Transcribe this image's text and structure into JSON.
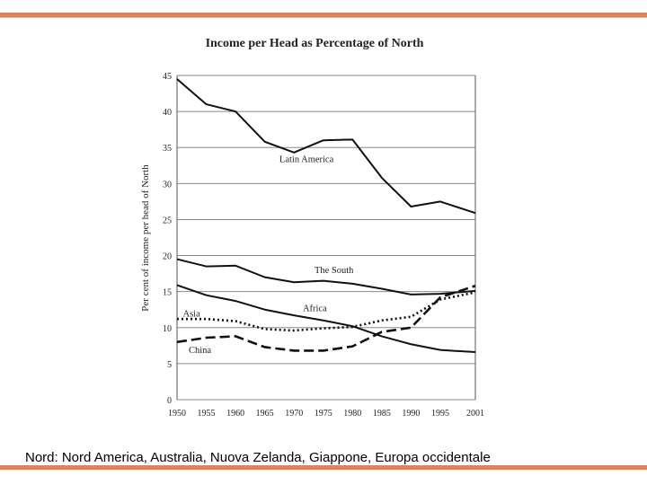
{
  "caption": "Nord: Nord America, Australia, Nuova Zelanda, Giappone, Europa occidentale",
  "chart_data": {
    "type": "line",
    "title": "Income per Head as Percentage of North",
    "ylabel": "Per cent of income per head of North",
    "xlabel": "",
    "ylim": [
      0,
      45
    ],
    "yticks": [
      0,
      5,
      10,
      15,
      20,
      25,
      30,
      35,
      40,
      45
    ],
    "x": [
      1950,
      1955,
      1960,
      1965,
      1970,
      1975,
      1980,
      1985,
      1990,
      1995,
      2001
    ],
    "x_tick_labels": [
      "1950",
      "1955",
      "1960",
      "1965",
      "1970",
      "1975",
      "1980",
      "1985",
      "1990",
      "1995",
      "2001"
    ],
    "grid": "horizontal",
    "series": [
      {
        "name": "Latin America",
        "style": "solid",
        "values": [
          44.5,
          41,
          40,
          35.8,
          34.3,
          36,
          36.1,
          30.8,
          26.8,
          27.5,
          25.9
        ]
      },
      {
        "name": "The South",
        "style": "solid",
        "values": [
          19.5,
          18.5,
          18.6,
          17,
          16.3,
          16.5,
          16.1,
          15.4,
          14.6,
          14.7,
          15.1
        ]
      },
      {
        "name": "Africa",
        "style": "solid",
        "values": [
          15.9,
          14.5,
          13.7,
          12.5,
          11.7,
          11,
          10.2,
          8.8,
          7.7,
          6.9,
          6.6
        ]
      },
      {
        "name": "Asia",
        "style": "dotted",
        "values": [
          11.2,
          11.2,
          10.9,
          9.8,
          9.6,
          9.9,
          10.1,
          11,
          11.5,
          13.9,
          14.9
        ]
      },
      {
        "name": "China",
        "style": "dashed",
        "values": [
          8,
          8.6,
          8.8,
          7.3,
          6.8,
          6.8,
          7.4,
          9.4,
          10,
          14.2,
          15.8
        ]
      }
    ],
    "series_label_positions": {
      "Latin America": [
        1967.5,
        33
      ],
      "The South": [
        1973.5,
        17.6
      ],
      "Africa": [
        1971.5,
        12.3
      ],
      "Asia": [
        1951,
        11.5
      ],
      "China": [
        1952,
        6.5
      ]
    }
  }
}
